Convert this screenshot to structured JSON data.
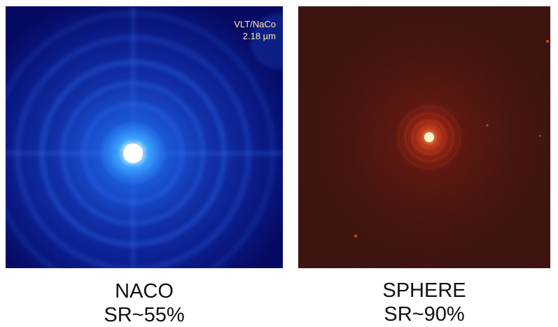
{
  "panels": [
    {
      "overlay": {
        "instrument": "VLT/NaCo",
        "wavelength": "2.18 µm"
      },
      "caption": {
        "name": "NACO",
        "strehl": "SR~55%"
      },
      "colors": {
        "background": "#060a63",
        "halo": "#1f4fd8",
        "core": "#ffffff"
      }
    },
    {
      "caption": {
        "name": "SPHERE",
        "strehl": "SR~90%"
      },
      "colors": {
        "background": "#1c0303",
        "halo": "#b32010",
        "core": "#fff2c0"
      }
    }
  ]
}
